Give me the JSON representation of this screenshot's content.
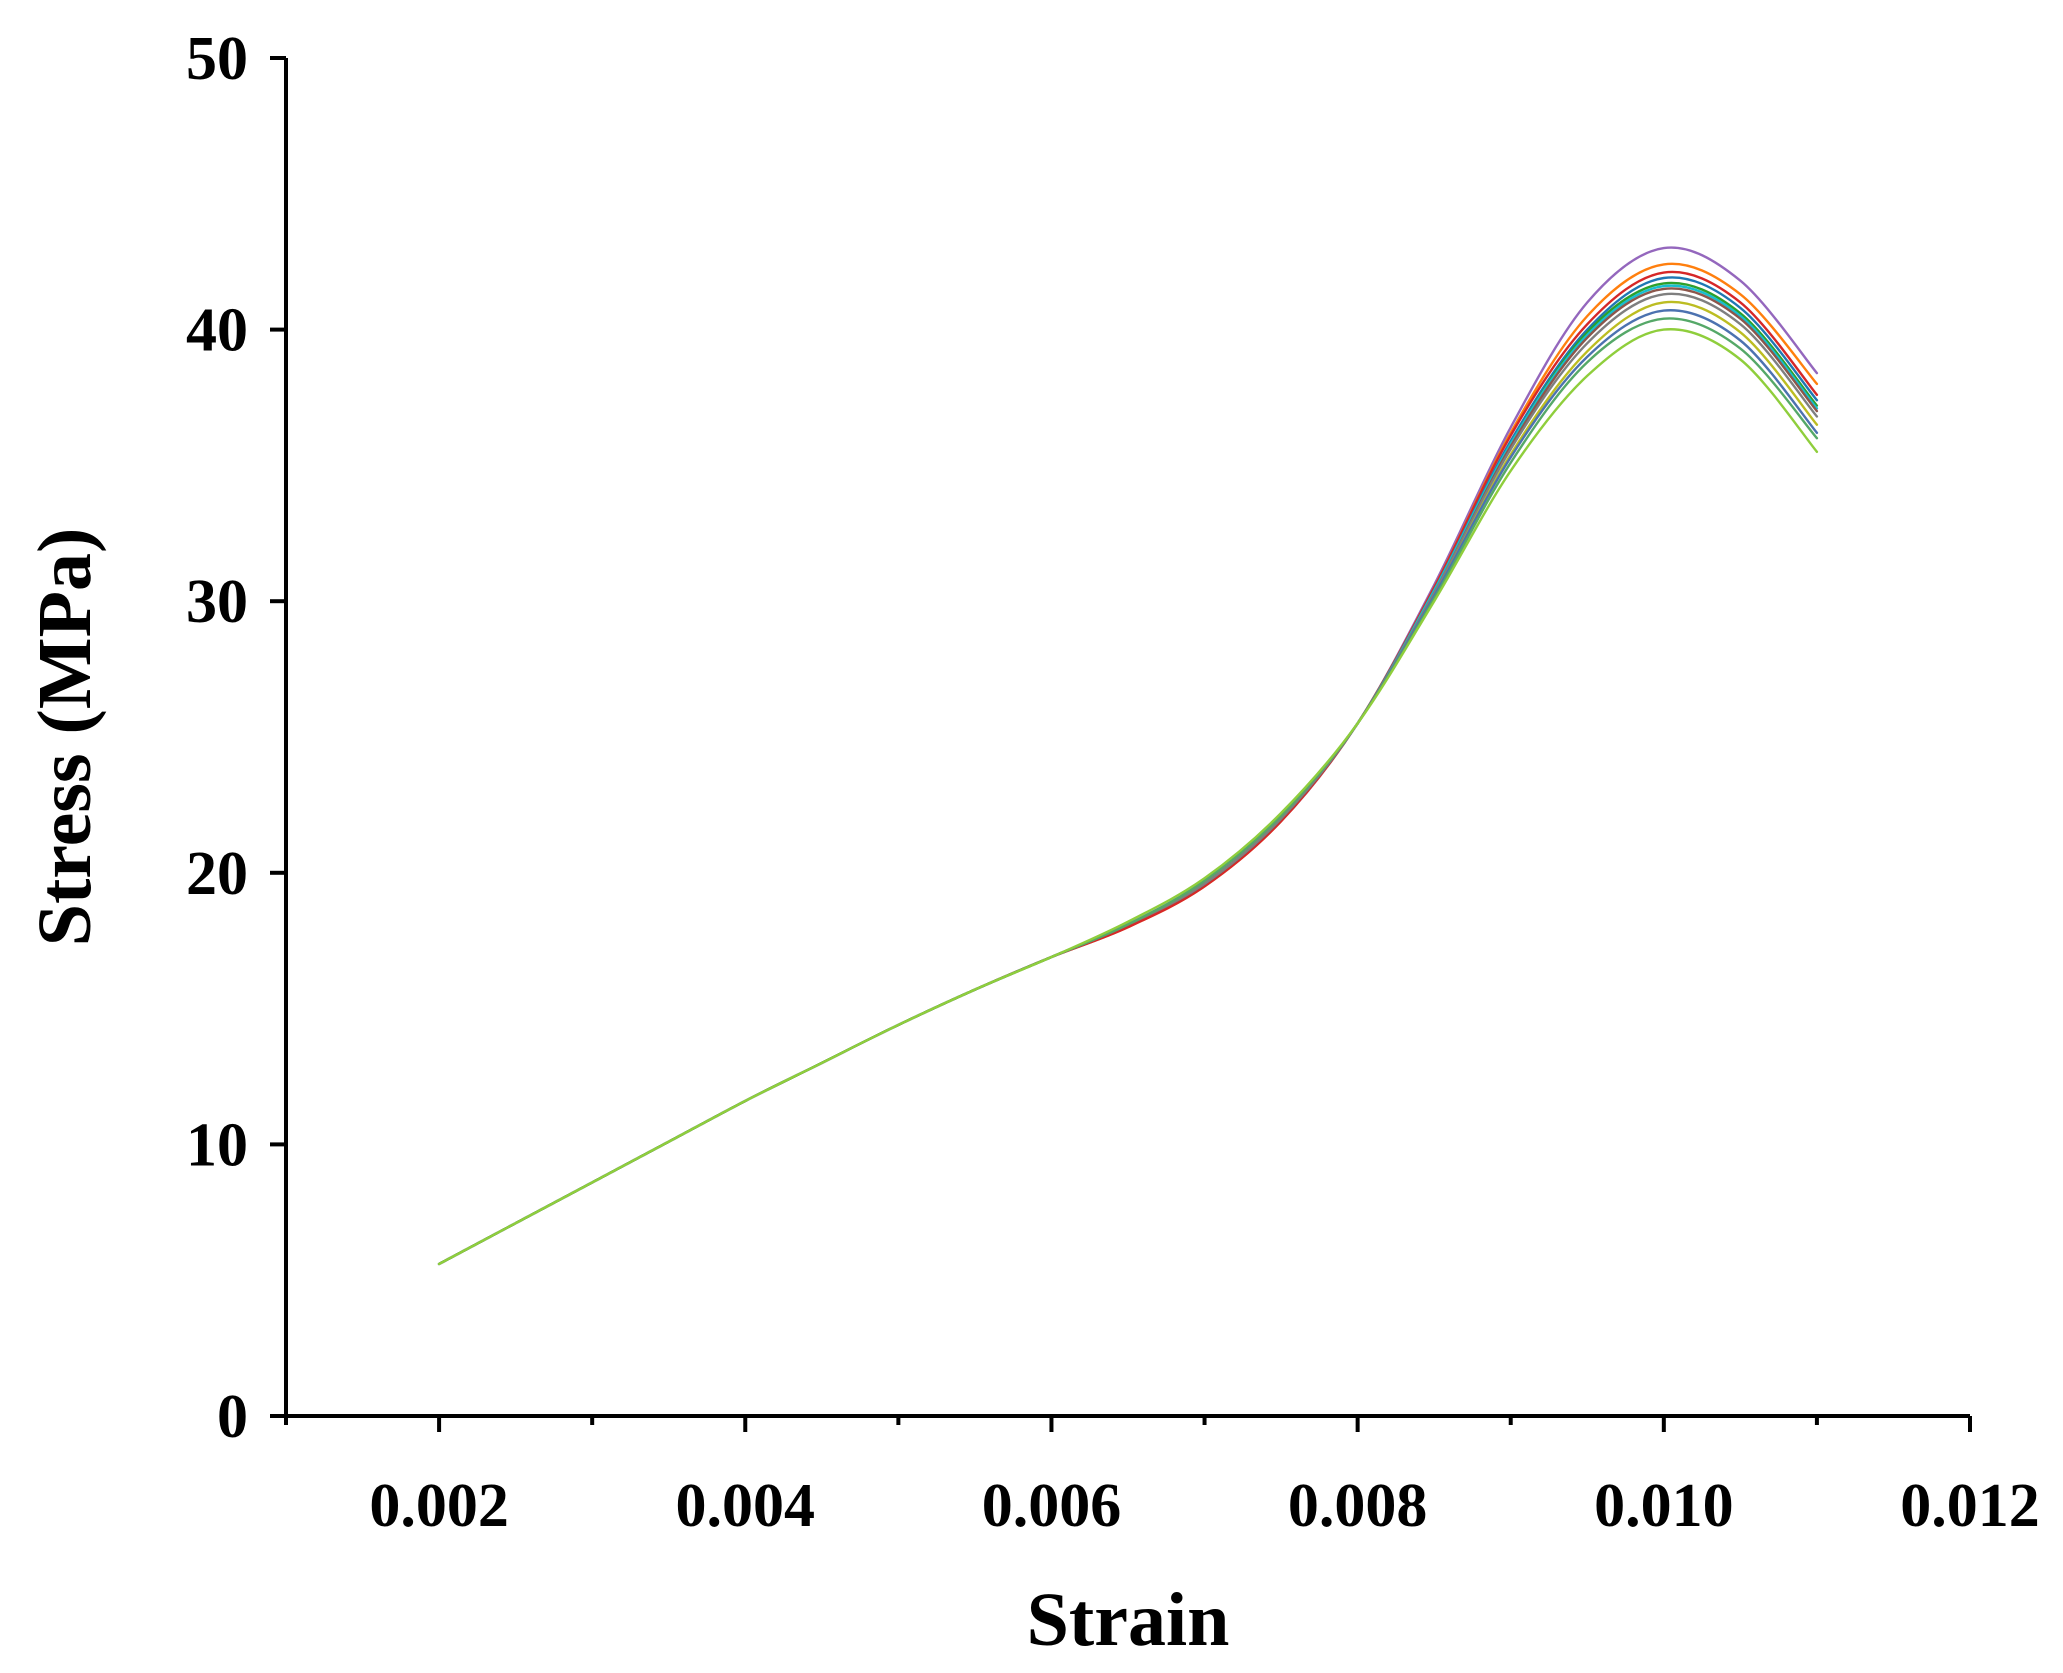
{
  "chart_data": {
    "type": "line",
    "title": "",
    "xlabel": "Strain",
    "ylabel": "Stress (MPa)",
    "xlim": [
      0.001,
      0.012
    ],
    "ylim": [
      0,
      50
    ],
    "xticks": [
      0.002,
      0.004,
      0.006,
      0.008,
      0.01,
      0.012
    ],
    "xtick_labels": [
      "0.002",
      "0.004",
      "0.006",
      "0.008",
      "0.010",
      "0.012"
    ],
    "yticks": [
      0,
      10,
      20,
      30,
      40,
      50
    ],
    "ytick_labels": [
      "0",
      "10",
      "20",
      "30",
      "40",
      "50"
    ],
    "grid": false,
    "legend": "none",
    "x": [
      0.002,
      0.0025,
      0.003,
      0.0035,
      0.004,
      0.0045,
      0.005,
      0.0055,
      0.006,
      0.0065,
      0.007,
      0.0075,
      0.008,
      0.0085,
      0.009,
      0.0095,
      0.01,
      0.0105,
      0.011
    ],
    "series": [
      {
        "color": "#9467bd",
        "values": [
          5.6,
          7.1,
          8.6,
          10.1,
          11.6,
          13.0,
          14.4,
          15.7,
          16.9,
          18.0,
          19.6,
          21.9,
          25.5,
          30.6,
          36.4,
          41.0,
          43.0,
          41.8,
          38.4
        ]
      },
      {
        "color": "#ff7f0e",
        "values": [
          5.6,
          7.1,
          8.6,
          10.1,
          11.6,
          13.0,
          14.4,
          15.7,
          16.9,
          18.0,
          19.5,
          21.9,
          25.5,
          30.5,
          36.2,
          40.5,
          42.4,
          41.3,
          38.0
        ]
      },
      {
        "color": "#d62728",
        "values": [
          5.6,
          7.1,
          8.6,
          10.1,
          11.6,
          13.0,
          14.4,
          15.7,
          16.9,
          18.0,
          19.5,
          21.9,
          25.5,
          30.5,
          36.1,
          40.2,
          42.1,
          41.0,
          37.6
        ]
      },
      {
        "color": "#1f77b4",
        "values": [
          5.6,
          7.1,
          8.6,
          10.1,
          11.6,
          13.0,
          14.4,
          15.7,
          16.9,
          18.1,
          19.6,
          22.0,
          25.5,
          30.4,
          35.9,
          40.0,
          41.9,
          40.8,
          37.4
        ]
      },
      {
        "color": "#2ca02c",
        "values": [
          5.6,
          7.1,
          8.6,
          10.1,
          11.6,
          13.0,
          14.4,
          15.7,
          16.9,
          18.1,
          19.6,
          22.0,
          25.5,
          30.4,
          35.8,
          39.9,
          41.7,
          40.6,
          37.2
        ]
      },
      {
        "color": "#17becf",
        "values": [
          5.6,
          7.1,
          8.6,
          10.1,
          11.6,
          13.0,
          14.4,
          15.7,
          16.9,
          18.1,
          19.6,
          22.0,
          25.5,
          30.4,
          35.8,
          39.8,
          41.6,
          40.5,
          37.1
        ]
      },
      {
        "color": "#8c564b",
        "values": [
          5.6,
          7.1,
          8.6,
          10.1,
          11.6,
          13.0,
          14.4,
          15.7,
          16.9,
          18.1,
          19.6,
          22.0,
          25.5,
          30.3,
          35.7,
          39.7,
          41.5,
          40.4,
          37.0
        ]
      },
      {
        "color": "#7f7f7f",
        "values": [
          5.6,
          7.1,
          8.6,
          10.1,
          11.6,
          13.0,
          14.4,
          15.7,
          16.9,
          18.1,
          19.6,
          22.0,
          25.5,
          30.3,
          35.6,
          39.5,
          41.3,
          40.2,
          36.8
        ]
      },
      {
        "color": "#bcbd22",
        "values": [
          5.6,
          7.1,
          8.6,
          10.1,
          11.6,
          13.0,
          14.4,
          15.7,
          16.9,
          18.1,
          19.7,
          22.1,
          25.5,
          30.2,
          35.4,
          39.2,
          41.0,
          39.9,
          36.5
        ]
      },
      {
        "color": "#4c72b0",
        "values": [
          5.6,
          7.1,
          8.6,
          10.1,
          11.6,
          13.0,
          14.4,
          15.7,
          16.9,
          18.1,
          19.7,
          22.1,
          25.5,
          30.2,
          35.3,
          39.0,
          40.7,
          39.6,
          36.2
        ]
      },
      {
        "color": "#55a868",
        "values": [
          5.6,
          7.1,
          8.6,
          10.1,
          11.6,
          13.0,
          14.4,
          15.7,
          16.9,
          18.1,
          19.7,
          22.1,
          25.5,
          30.1,
          35.1,
          38.8,
          40.4,
          39.3,
          36.0
        ]
      },
      {
        "color": "#8fce3c",
        "values": [
          5.6,
          7.1,
          8.6,
          10.1,
          11.6,
          13.0,
          14.4,
          15.7,
          16.9,
          18.2,
          19.8,
          22.2,
          25.5,
          30.0,
          34.8,
          38.3,
          40.0,
          38.9,
          35.5
        ]
      }
    ]
  }
}
